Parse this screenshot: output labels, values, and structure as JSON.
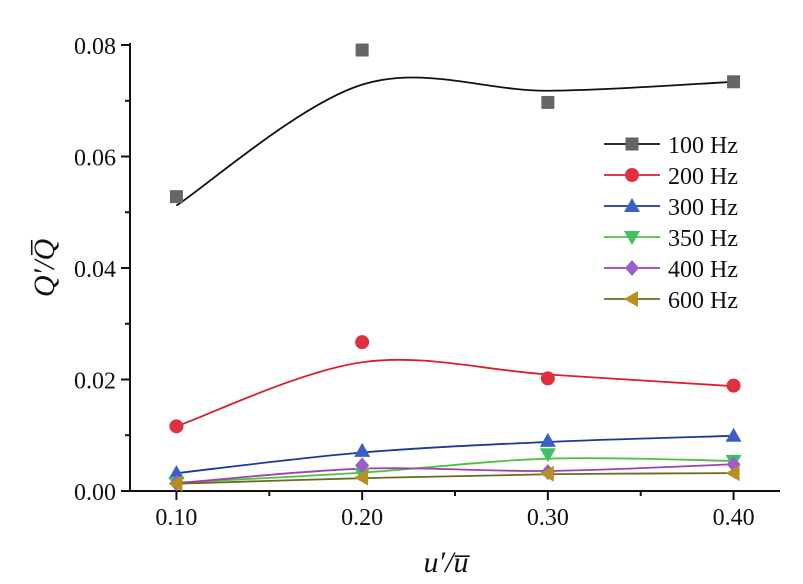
{
  "chart_data": {
    "type": "scatter",
    "title": "",
    "xlabel": "u′/u̅",
    "ylabel": "Q′/Q̅",
    "xlim": [
      0.075,
      0.425
    ],
    "ylim": [
      0.0,
      0.08
    ],
    "x_ticks": [
      0.1,
      0.2,
      0.3,
      0.4
    ],
    "x_tick_labels": [
      "0.10",
      "0.20",
      "0.30",
      "0.40"
    ],
    "y_ticks": [
      0.0,
      0.02,
      0.04,
      0.06,
      0.08
    ],
    "y_tick_labels": [
      "0.00",
      "0.02",
      "0.04",
      "0.06",
      "0.08"
    ],
    "grid": false,
    "legend_position": "right",
    "x": [
      0.1,
      0.2,
      0.3,
      0.4
    ],
    "series": [
      {
        "name": "100 Hz",
        "color": "#666666",
        "line_color": "#111111",
        "marker": "square",
        "values": [
          0.0528,
          0.0791,
          0.0697,
          0.0734
        ],
        "fit": [
          0.0512,
          0.0729,
          0.0718,
          0.0734
        ]
      },
      {
        "name": "200 Hz",
        "color": "#e03040",
        "line_color": "#d8202c",
        "marker": "circle",
        "values": [
          0.0116,
          0.0267,
          0.0202,
          0.0189
        ],
        "fit": [
          0.0116,
          0.0231,
          0.0209,
          0.0188
        ]
      },
      {
        "name": "300 Hz",
        "color": "#3a60c8",
        "line_color": "#1a3a9a",
        "marker": "triangle-up",
        "values": [
          0.0032,
          0.0072,
          0.009,
          0.0099
        ],
        "fit": [
          0.0032,
          0.0069,
          0.0088,
          0.0099
        ]
      },
      {
        "name": "350 Hz",
        "color": "#40c060",
        "line_color": "#50c040",
        "marker": "triangle-down",
        "values": [
          0.0015,
          0.0031,
          0.0066,
          0.0054
        ],
        "fit": [
          0.0015,
          0.0033,
          0.0058,
          0.0054
        ]
      },
      {
        "name": "400 Hz",
        "color": "#9a60c8",
        "line_color": "#a040b0",
        "marker": "diamond",
        "values": [
          0.0014,
          0.0046,
          0.0034,
          0.0048
        ],
        "fit": [
          0.0014,
          0.004,
          0.0036,
          0.0048
        ]
      },
      {
        "name": "600 Hz",
        "color": "#b89020",
        "line_color": "#6a6a20",
        "marker": "triangle-left",
        "values": [
          0.0013,
          0.0024,
          0.0031,
          0.0032
        ],
        "fit": [
          0.0013,
          0.0023,
          0.003,
          0.0032
        ]
      }
    ]
  }
}
